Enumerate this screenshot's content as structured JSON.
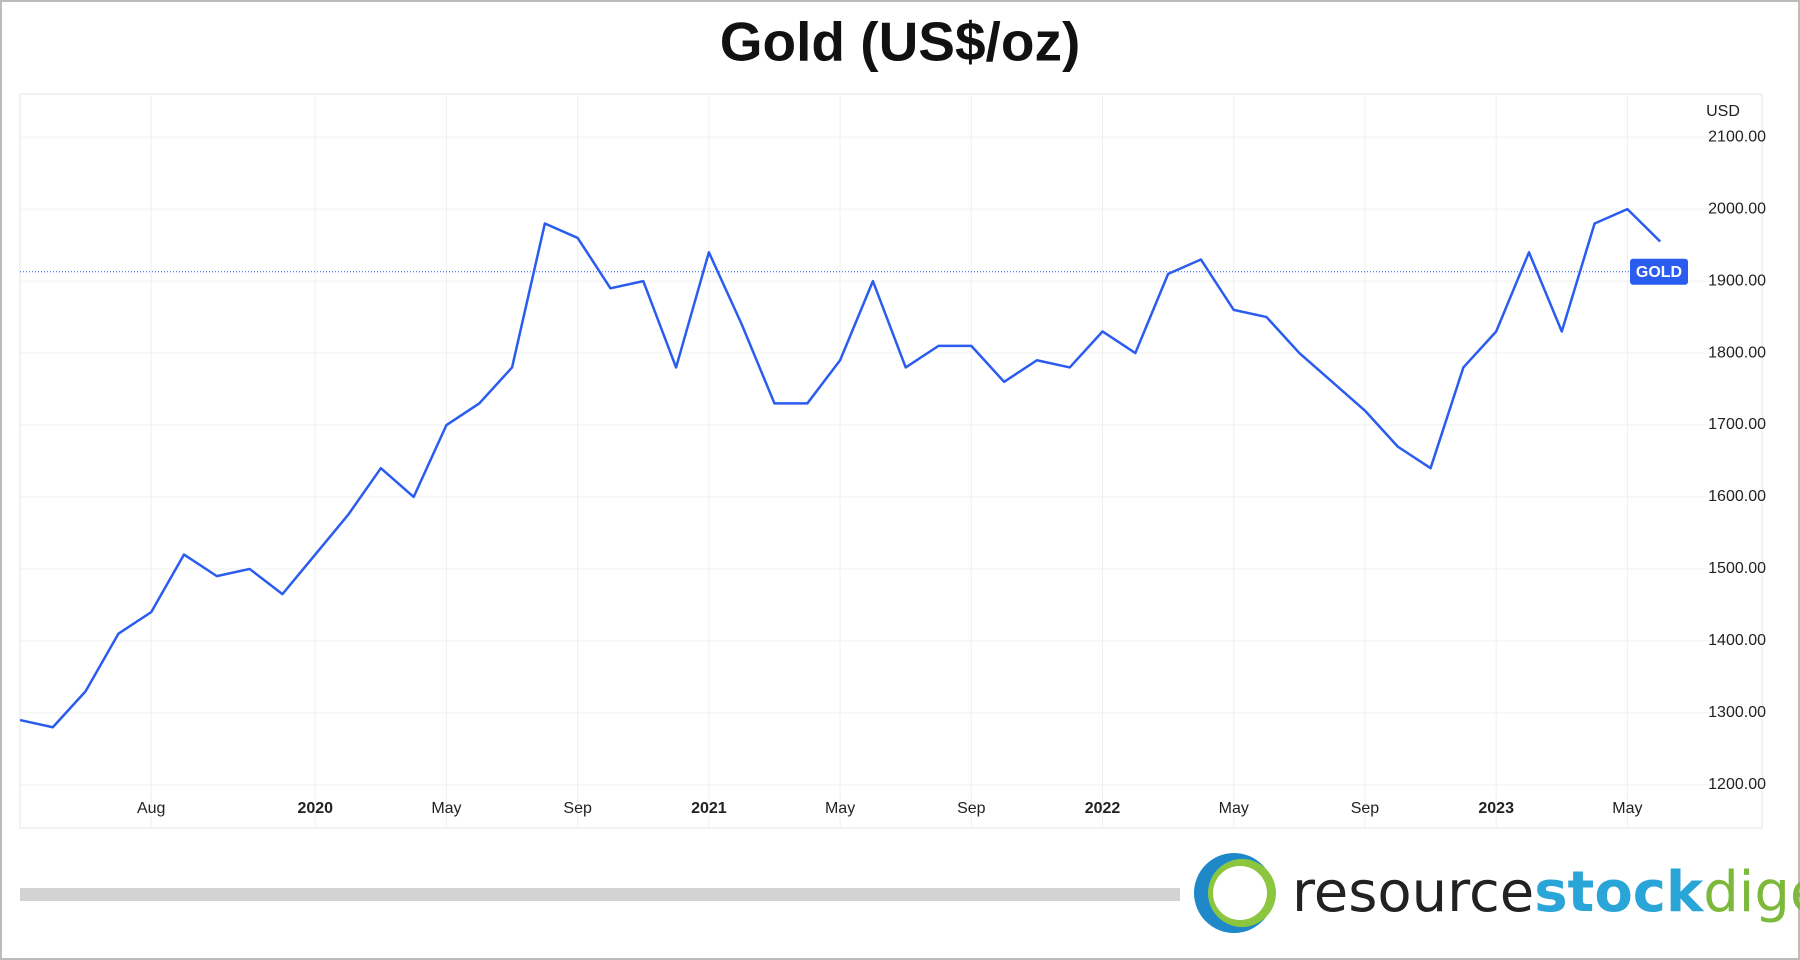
{
  "chart_data": {
    "type": "line",
    "title": "Gold (US$/oz)",
    "y_unit": "USD",
    "x": [
      "2019-04",
      "2019-05",
      "2019-06",
      "2019-07",
      "2019-08",
      "2019-09",
      "2019-10",
      "2019-11",
      "2019-12",
      "2020-01",
      "2020-02",
      "2020-03",
      "2020-04",
      "2020-05",
      "2020-06",
      "2020-07",
      "2020-08",
      "2020-09",
      "2020-10",
      "2020-11",
      "2020-12",
      "2021-01",
      "2021-02",
      "2021-03",
      "2021-04",
      "2021-05",
      "2021-06",
      "2021-07",
      "2021-08",
      "2021-09",
      "2021-10",
      "2021-11",
      "2021-12",
      "2022-01",
      "2022-02",
      "2022-03",
      "2022-04",
      "2022-05",
      "2022-06",
      "2022-07",
      "2022-08",
      "2022-09",
      "2022-10",
      "2022-11",
      "2022-12",
      "2023-01",
      "2023-02",
      "2023-03",
      "2023-04",
      "2023-05",
      "2023-06"
    ],
    "series": [
      {
        "name": "GOLD",
        "color": "#2a5cf0",
        "values": [
          1290,
          1280,
          1330,
          1410,
          1440,
          1520,
          1490,
          1500,
          1465,
          1520,
          1575,
          1640,
          1600,
          1700,
          1730,
          1780,
          1980,
          1960,
          1890,
          1900,
          1780,
          1940,
          1840,
          1730,
          1730,
          1790,
          1900,
          1780,
          1810,
          1810,
          1760,
          1790,
          1780,
          1830,
          1800,
          1910,
          1930,
          1860,
          1850,
          1800,
          1760,
          1720,
          1670,
          1640,
          1780,
          1830,
          1940,
          1830,
          1980,
          2000,
          1955
        ]
      }
    ],
    "price_line": 1913,
    "xlim": [
      "2019-04",
      "2023-07"
    ],
    "xticks": [
      {
        "value": "2019-08",
        "label": "Aug"
      },
      {
        "value": "2020-01",
        "label": "2020"
      },
      {
        "value": "2020-05",
        "label": "May"
      },
      {
        "value": "2020-09",
        "label": "Sep"
      },
      {
        "value": "2021-01",
        "label": "2021"
      },
      {
        "value": "2021-05",
        "label": "May"
      },
      {
        "value": "2021-09",
        "label": "Sep"
      },
      {
        "value": "2022-01",
        "label": "2022"
      },
      {
        "value": "2022-05",
        "label": "May"
      },
      {
        "value": "2022-09",
        "label": "Sep"
      },
      {
        "value": "2023-01",
        "label": "2023"
      },
      {
        "value": "2023-05",
        "label": "May"
      }
    ],
    "ylim": [
      1140,
      2160
    ],
    "yticks": [
      {
        "value": 1200,
        "label": "1200.00"
      },
      {
        "value": 1300,
        "label": "1300.00"
      },
      {
        "value": 1400,
        "label": "1400.00"
      },
      {
        "value": 1500,
        "label": "1500.00"
      },
      {
        "value": 1600,
        "label": "1600.00"
      },
      {
        "value": 1700,
        "label": "1700.00"
      },
      {
        "value": 1800,
        "label": "1800.00"
      },
      {
        "value": 1900,
        "label": "1900.00"
      },
      {
        "value": 2000,
        "label": "2000.00"
      },
      {
        "value": 2100,
        "label": "2100.00"
      }
    ],
    "grid": true
  },
  "logo": {
    "parts": [
      "resource",
      "stock",
      "digest"
    ]
  }
}
